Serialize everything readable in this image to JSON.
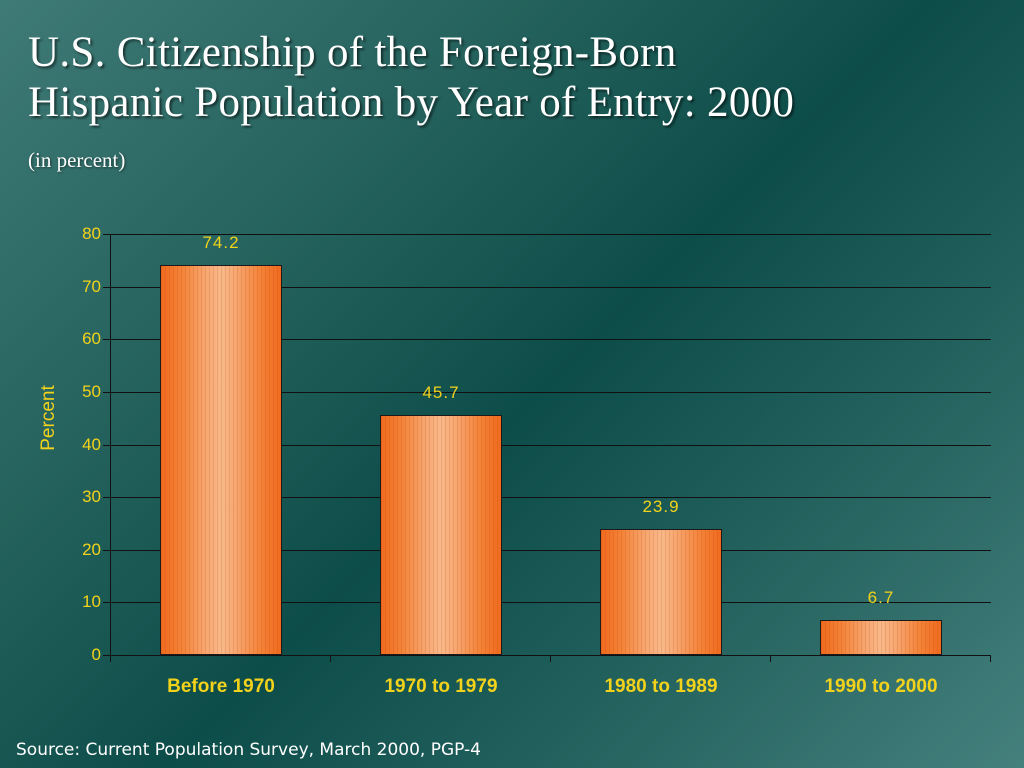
{
  "slide": {
    "title_line1": "U.S. Citizenship of the Foreign-Born",
    "title_line2": "Hispanic Population by Year of Entry:  2000",
    "subtitle": "(in percent)",
    "source": "Source:  Current Population Survey, March 2000, PGP-4"
  },
  "colors": {
    "background_dark": "#0d4d49",
    "background_light": "#45807d",
    "bar_orange": "#f06a1e",
    "bar_highlight": "#f9b98a",
    "label_yellow": "#f2d21a",
    "title_white": "#ffffff"
  },
  "chart_data": {
    "type": "bar",
    "title": "U.S. Citizenship of the Foreign-Born Hispanic Population by Year of Entry: 2000",
    "subtitle": "(in percent)",
    "categories": [
      "Before 1970",
      "1970 to 1979",
      "1980 to 1989",
      "1990 to 2000"
    ],
    "values": [
      74.2,
      45.7,
      23.9,
      6.7
    ],
    "value_labels": [
      "74.2",
      "45.7",
      "23.9",
      "6.7"
    ],
    "xlabel": "",
    "ylabel": "Percent",
    "ylim": [
      0,
      80
    ],
    "yticks": [
      "0",
      "10",
      "20",
      "30",
      "40",
      "50",
      "60",
      "70",
      "80"
    ],
    "grid": true,
    "legend": null
  }
}
